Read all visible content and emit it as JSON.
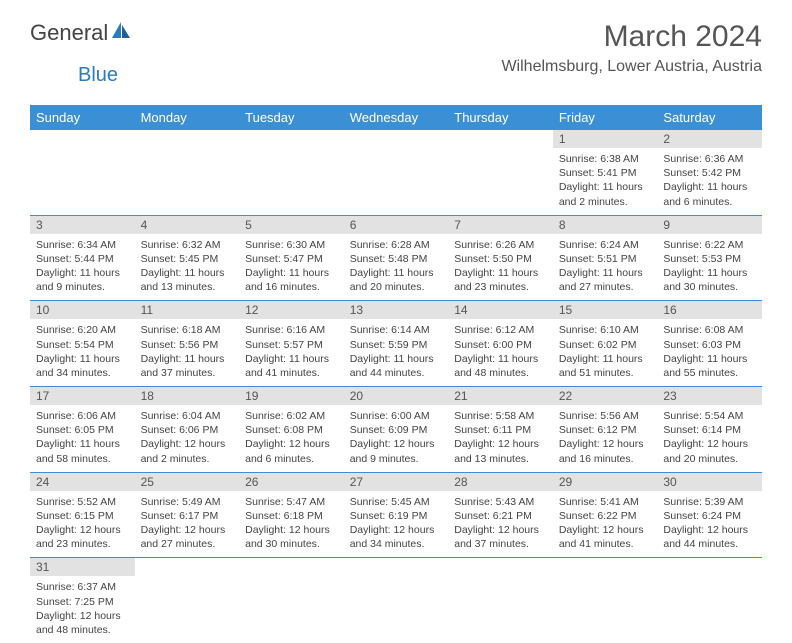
{
  "logo": {
    "word1": "General",
    "word2": "Blue"
  },
  "title": "March 2024",
  "location": "Wilhelmsburg, Lower Austria, Austria",
  "colors": {
    "header_bg": "#3b8fd4",
    "header_text": "#ffffff",
    "daynum_bg": "#e2e2e2",
    "row_border": "#3b8fd4",
    "logo_accent": "#2b7bbf"
  },
  "day_headers": [
    "Sunday",
    "Monday",
    "Tuesday",
    "Wednesday",
    "Thursday",
    "Friday",
    "Saturday"
  ],
  "weeks": [
    [
      null,
      null,
      null,
      null,
      null,
      {
        "n": "1",
        "sr": "Sunrise: 6:38 AM",
        "ss": "Sunset: 5:41 PM",
        "dl1": "Daylight: 11 hours",
        "dl2": "and 2 minutes."
      },
      {
        "n": "2",
        "sr": "Sunrise: 6:36 AM",
        "ss": "Sunset: 5:42 PM",
        "dl1": "Daylight: 11 hours",
        "dl2": "and 6 minutes."
      }
    ],
    [
      {
        "n": "3",
        "sr": "Sunrise: 6:34 AM",
        "ss": "Sunset: 5:44 PM",
        "dl1": "Daylight: 11 hours",
        "dl2": "and 9 minutes."
      },
      {
        "n": "4",
        "sr": "Sunrise: 6:32 AM",
        "ss": "Sunset: 5:45 PM",
        "dl1": "Daylight: 11 hours",
        "dl2": "and 13 minutes."
      },
      {
        "n": "5",
        "sr": "Sunrise: 6:30 AM",
        "ss": "Sunset: 5:47 PM",
        "dl1": "Daylight: 11 hours",
        "dl2": "and 16 minutes."
      },
      {
        "n": "6",
        "sr": "Sunrise: 6:28 AM",
        "ss": "Sunset: 5:48 PM",
        "dl1": "Daylight: 11 hours",
        "dl2": "and 20 minutes."
      },
      {
        "n": "7",
        "sr": "Sunrise: 6:26 AM",
        "ss": "Sunset: 5:50 PM",
        "dl1": "Daylight: 11 hours",
        "dl2": "and 23 minutes."
      },
      {
        "n": "8",
        "sr": "Sunrise: 6:24 AM",
        "ss": "Sunset: 5:51 PM",
        "dl1": "Daylight: 11 hours",
        "dl2": "and 27 minutes."
      },
      {
        "n": "9",
        "sr": "Sunrise: 6:22 AM",
        "ss": "Sunset: 5:53 PM",
        "dl1": "Daylight: 11 hours",
        "dl2": "and 30 minutes."
      }
    ],
    [
      {
        "n": "10",
        "sr": "Sunrise: 6:20 AM",
        "ss": "Sunset: 5:54 PM",
        "dl1": "Daylight: 11 hours",
        "dl2": "and 34 minutes."
      },
      {
        "n": "11",
        "sr": "Sunrise: 6:18 AM",
        "ss": "Sunset: 5:56 PM",
        "dl1": "Daylight: 11 hours",
        "dl2": "and 37 minutes."
      },
      {
        "n": "12",
        "sr": "Sunrise: 6:16 AM",
        "ss": "Sunset: 5:57 PM",
        "dl1": "Daylight: 11 hours",
        "dl2": "and 41 minutes."
      },
      {
        "n": "13",
        "sr": "Sunrise: 6:14 AM",
        "ss": "Sunset: 5:59 PM",
        "dl1": "Daylight: 11 hours",
        "dl2": "and 44 minutes."
      },
      {
        "n": "14",
        "sr": "Sunrise: 6:12 AM",
        "ss": "Sunset: 6:00 PM",
        "dl1": "Daylight: 11 hours",
        "dl2": "and 48 minutes."
      },
      {
        "n": "15",
        "sr": "Sunrise: 6:10 AM",
        "ss": "Sunset: 6:02 PM",
        "dl1": "Daylight: 11 hours",
        "dl2": "and 51 minutes."
      },
      {
        "n": "16",
        "sr": "Sunrise: 6:08 AM",
        "ss": "Sunset: 6:03 PM",
        "dl1": "Daylight: 11 hours",
        "dl2": "and 55 minutes."
      }
    ],
    [
      {
        "n": "17",
        "sr": "Sunrise: 6:06 AM",
        "ss": "Sunset: 6:05 PM",
        "dl1": "Daylight: 11 hours",
        "dl2": "and 58 minutes."
      },
      {
        "n": "18",
        "sr": "Sunrise: 6:04 AM",
        "ss": "Sunset: 6:06 PM",
        "dl1": "Daylight: 12 hours",
        "dl2": "and 2 minutes."
      },
      {
        "n": "19",
        "sr": "Sunrise: 6:02 AM",
        "ss": "Sunset: 6:08 PM",
        "dl1": "Daylight: 12 hours",
        "dl2": "and 6 minutes."
      },
      {
        "n": "20",
        "sr": "Sunrise: 6:00 AM",
        "ss": "Sunset: 6:09 PM",
        "dl1": "Daylight: 12 hours",
        "dl2": "and 9 minutes."
      },
      {
        "n": "21",
        "sr": "Sunrise: 5:58 AM",
        "ss": "Sunset: 6:11 PM",
        "dl1": "Daylight: 12 hours",
        "dl2": "and 13 minutes."
      },
      {
        "n": "22",
        "sr": "Sunrise: 5:56 AM",
        "ss": "Sunset: 6:12 PM",
        "dl1": "Daylight: 12 hours",
        "dl2": "and 16 minutes."
      },
      {
        "n": "23",
        "sr": "Sunrise: 5:54 AM",
        "ss": "Sunset: 6:14 PM",
        "dl1": "Daylight: 12 hours",
        "dl2": "and 20 minutes."
      }
    ],
    [
      {
        "n": "24",
        "sr": "Sunrise: 5:52 AM",
        "ss": "Sunset: 6:15 PM",
        "dl1": "Daylight: 12 hours",
        "dl2": "and 23 minutes."
      },
      {
        "n": "25",
        "sr": "Sunrise: 5:49 AM",
        "ss": "Sunset: 6:17 PM",
        "dl1": "Daylight: 12 hours",
        "dl2": "and 27 minutes."
      },
      {
        "n": "26",
        "sr": "Sunrise: 5:47 AM",
        "ss": "Sunset: 6:18 PM",
        "dl1": "Daylight: 12 hours",
        "dl2": "and 30 minutes."
      },
      {
        "n": "27",
        "sr": "Sunrise: 5:45 AM",
        "ss": "Sunset: 6:19 PM",
        "dl1": "Daylight: 12 hours",
        "dl2": "and 34 minutes."
      },
      {
        "n": "28",
        "sr": "Sunrise: 5:43 AM",
        "ss": "Sunset: 6:21 PM",
        "dl1": "Daylight: 12 hours",
        "dl2": "and 37 minutes."
      },
      {
        "n": "29",
        "sr": "Sunrise: 5:41 AM",
        "ss": "Sunset: 6:22 PM",
        "dl1": "Daylight: 12 hours",
        "dl2": "and 41 minutes."
      },
      {
        "n": "30",
        "sr": "Sunrise: 5:39 AM",
        "ss": "Sunset: 6:24 PM",
        "dl1": "Daylight: 12 hours",
        "dl2": "and 44 minutes."
      }
    ],
    [
      {
        "n": "31",
        "sr": "Sunrise: 6:37 AM",
        "ss": "Sunset: 7:25 PM",
        "dl1": "Daylight: 12 hours",
        "dl2": "and 48 minutes."
      },
      null,
      null,
      null,
      null,
      null,
      null
    ]
  ]
}
